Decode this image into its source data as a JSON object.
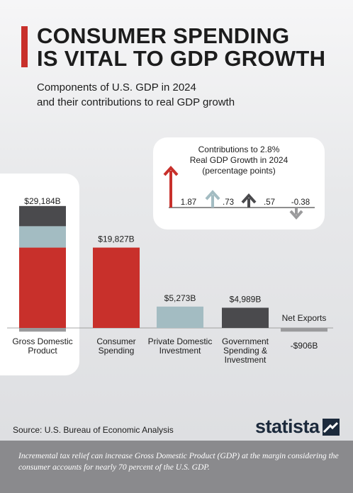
{
  "header": {
    "title_line1": "CONSUMER SPENDING",
    "title_line2": "IS VITAL TO GDP GROWTH",
    "subtitle_line1": "Components of U.S. GDP in 2024",
    "subtitle_line2": "and their contributions to real GDP growth"
  },
  "colors": {
    "accent": "#c8302b",
    "dark": "#4a4a4d",
    "light_blue": "#a3bcc2",
    "grey": "#9a9a9c"
  },
  "chart_data": [
    {
      "type": "bar",
      "title": "",
      "categories": [
        "Gross Domestic Product",
        "Consumer Spending",
        "Private Domestic Investment",
        "Government Spending & Investment",
        "Net Exports"
      ],
      "category_labels": [
        [
          "Gross Domestic",
          "Product"
        ],
        [
          "Consumer",
          "Spending"
        ],
        [
          "Private Domestic",
          "Investment"
        ],
        [
          "Government",
          "Spending &",
          "Investment"
        ],
        [
          "Net Exports"
        ]
      ],
      "values": [
        29184,
        19827,
        5273,
        4989,
        -906
      ],
      "value_labels": [
        "$29,184B",
        "$19,827B",
        "$5,273B",
        "$4,989B",
        "-$906B"
      ],
      "bar_colors": [
        "stacked",
        "#c8302b",
        "#a3bcc2",
        "#4a4a4d",
        "#9a9a9c"
      ],
      "stacked_first_bar": [
        {
          "component": "Consumer Spending",
          "value": 19827,
          "color": "#c8302b"
        },
        {
          "component": "Private Domestic Investment",
          "value": 5273,
          "color": "#a3bcc2"
        },
        {
          "component": "Government Spending & Investment",
          "value": 4989,
          "color": "#4a4a4d"
        },
        {
          "component": "Net Exports",
          "value": -906,
          "color": "#9a9a9c"
        }
      ],
      "unit": "billion U.S. dollars",
      "ylim": [
        -906,
        29184
      ],
      "grid": false,
      "legend": "none"
    },
    {
      "type": "bar",
      "title_lines": [
        "Contributions to 2.8%",
        "Real GDP Growth in 2024",
        "(percentage points)"
      ],
      "categories": [
        "Consumer Spending",
        "Private Domestic Investment",
        "Government Spending & Investment",
        "Net Exports"
      ],
      "values": [
        1.87,
        0.73,
        0.57,
        -0.38
      ],
      "value_labels": [
        "1.87",
        ".73",
        ".57",
        "-0.38"
      ],
      "colors": [
        "#c8302b",
        "#a3bcc2",
        "#4a4a4d",
        "#9a9a9c"
      ],
      "marks": "arrows",
      "grid": false,
      "legend": "none"
    }
  ],
  "footer": {
    "source": "Source: U.S. Bureau of Economic Analysis",
    "logo_text": "statista",
    "note": "Incremental tax relief can increase Gross Domestic Product (GDP) at the margin considering the consumer accounts for nearly 70 percent of the U.S. GDP."
  }
}
